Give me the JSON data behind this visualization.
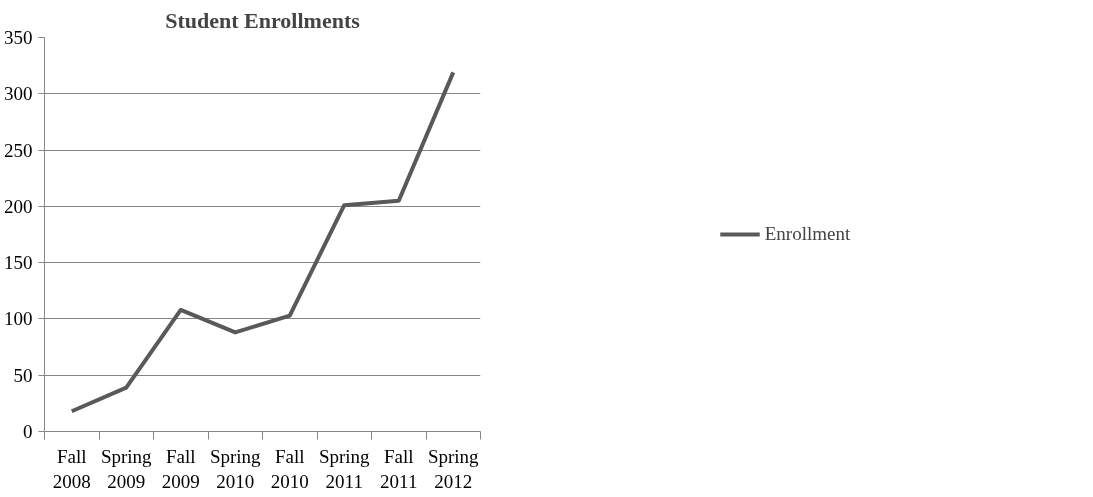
{
  "chart_data": {
    "type": "line",
    "title": "Student Enrollments",
    "categories": [
      "Fall 2008",
      "Spring 2009",
      "Fall 2009",
      "Spring 2010",
      "Fall 2010",
      "Spring 2011",
      "Fall 2011",
      "Spring 2012"
    ],
    "series": [
      {
        "name": "Enrollment",
        "color": "#595959",
        "values": [
          18,
          39,
          108,
          88,
          103,
          201,
          205,
          319
        ]
      }
    ],
    "ylim": [
      0,
      350
    ],
    "yticks": [
      0,
      50,
      100,
      150,
      200,
      250,
      300,
      350
    ],
    "grid": "y",
    "legend": "right",
    "marker": "none",
    "line_style": "solid"
  }
}
